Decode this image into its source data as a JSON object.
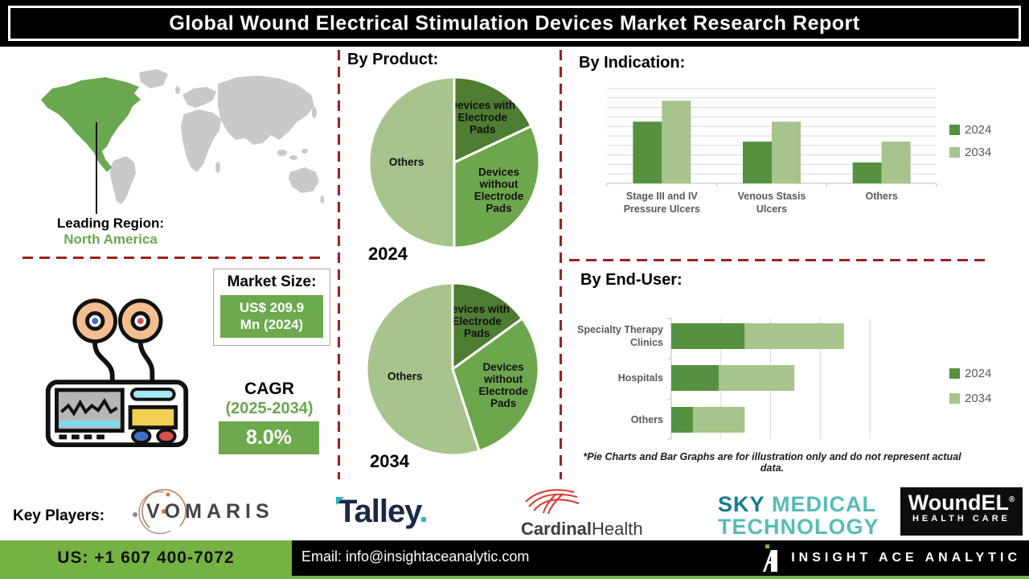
{
  "title": "Global Wound Electrical Stimulation Devices Market Research Report",
  "sections": {
    "product_heading": "By Product:",
    "indication_heading": "By Indication:",
    "end_user_heading": "By End-User:"
  },
  "map": {
    "leading_region_label": "Leading Region:",
    "leading_region_value": "North America"
  },
  "market_size": {
    "label": "Market Size:",
    "value_line1": "US$ 209.9",
    "value_line2": "Mn (2024)"
  },
  "cagr": {
    "label": "CAGR",
    "period": "(2025-2034)",
    "value": "8.0%"
  },
  "footnote": "*Pie Charts and Bar Graphs are for illustration only and do not represent actual data.",
  "key_players": {
    "label": "Key Players:",
    "vomaris": "VOMARIS",
    "talley": "Talley",
    "talley_dot": ".",
    "cardinal_bold": "Cardinal",
    "cardinal_regular": "Health",
    "sky_line1_a": "SKY",
    "sky_line1_b": " MEDICAL",
    "sky_line2": "TECHNOLOGY",
    "woundel_title": "WoundEL",
    "woundel_reg": "®",
    "woundel_subtitle": "HEALTH CARE"
  },
  "footer": {
    "phone": "US: +1 607 400-7072",
    "email": "Email: info@insightaceanalytic.com",
    "brand": "INSIGHT ACE ANALYTIC"
  },
  "colors": {
    "dark_green": "#4e7d32",
    "medium_green": "#6da74d",
    "light_green": "#a6c48b",
    "bar_dark": "#569140",
    "accent_green_box": "#6caa4d",
    "footer_green": "#75b244",
    "dashed_red": "#9e2020",
    "grid_gray": "#d9d9d9",
    "axis_gray": "#bfbfbf",
    "label_gray": "#595959"
  },
  "chart_data": [
    {
      "id": "product-pie-2024",
      "type": "pie",
      "year": "2024",
      "title": "By Product (2024)",
      "labels": [
        "Devices with Electrode Pads",
        "Devices without Electrode Pads",
        "Others"
      ],
      "values": [
        18,
        32,
        50
      ],
      "colors": [
        "#4e7d32",
        "#6da74d",
        "#a6c48b"
      ],
      "note": "illustration only"
    },
    {
      "id": "product-pie-2034",
      "type": "pie",
      "year": "2034",
      "title": "By Product (2034)",
      "labels": [
        "Devices with Electrode Pads",
        "Devices without Electrode Pads",
        "Others"
      ],
      "values": [
        15,
        30,
        55
      ],
      "colors": [
        "#4e7d32",
        "#6da74d",
        "#a6c48b"
      ],
      "note": "illustration only"
    },
    {
      "id": "indication-bar",
      "type": "bar",
      "title": "By Indication",
      "categories": [
        "Stage III and IV Pressure Ulcers",
        "Venous Stasis Ulcers",
        "Others"
      ],
      "series": [
        {
          "name": "2024",
          "color": "#569140",
          "values": [
            65,
            44,
            22
          ]
        },
        {
          "name": "2034",
          "color": "#a6c48b",
          "values": [
            87,
            65,
            44
          ]
        }
      ],
      "ylim": [
        0,
        100
      ],
      "grid": true,
      "legend_position": "right",
      "note": "illustration only"
    },
    {
      "id": "enduser-bar",
      "type": "stacked-bar-horizontal",
      "title": "By End-User",
      "categories": [
        "Specialty Therapy Clinics",
        "Hospitals",
        "Others"
      ],
      "series": [
        {
          "name": "2024",
          "color": "#569140",
          "values": [
            37,
            24,
            11
          ]
        },
        {
          "name": "2034",
          "color": "#a6c48b",
          "values": [
            50,
            38,
            26
          ]
        }
      ],
      "xlim": [
        0,
        100
      ],
      "grid": true,
      "legend_position": "right",
      "note": "illustration only"
    }
  ]
}
